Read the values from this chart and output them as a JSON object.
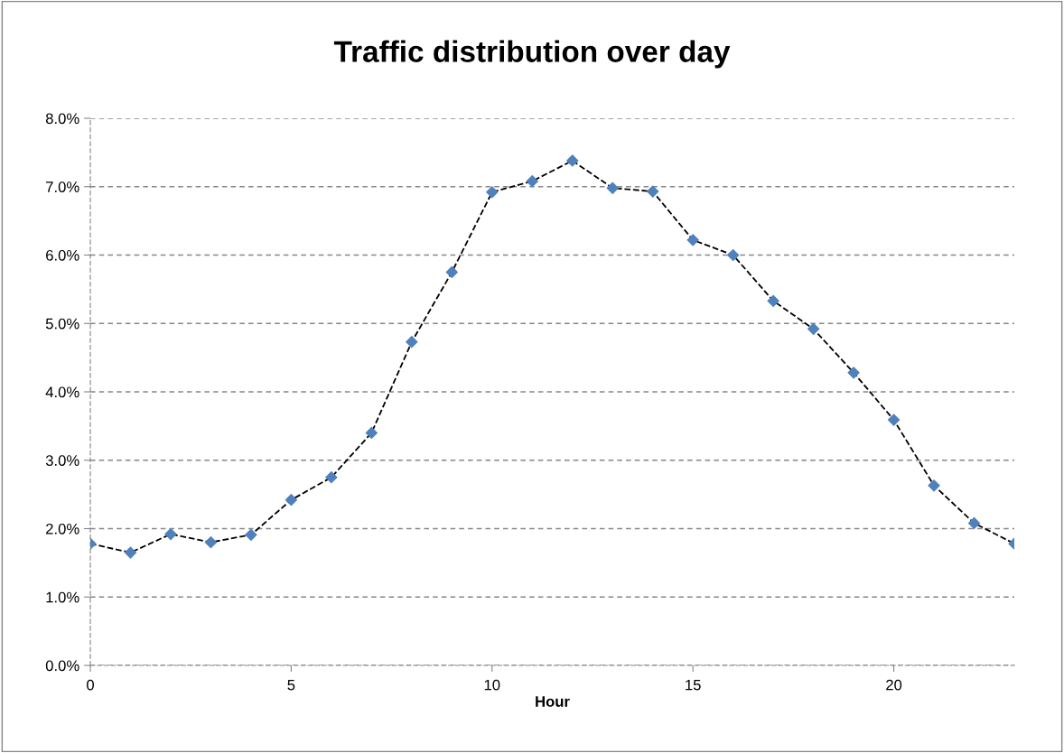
{
  "chart_data": {
    "type": "line",
    "title": "Traffic distribution over day",
    "xlabel": "Hour",
    "x": [
      0,
      1,
      2,
      3,
      4,
      5,
      6,
      7,
      8,
      9,
      10,
      11,
      12,
      13,
      14,
      15,
      16,
      17,
      18,
      19,
      20,
      21,
      22,
      23
    ],
    "series": [
      {
        "color": "#4f81bd",
        "values": [
          1.78,
          1.65,
          1.92,
          1.8,
          1.91,
          2.42,
          2.75,
          3.4,
          4.73,
          5.75,
          6.92,
          7.08,
          7.38,
          6.98,
          6.93,
          6.22,
          6.0,
          5.33,
          4.92,
          4.28,
          3.59,
          2.63,
          2.08,
          1.78
        ]
      }
    ],
    "xlim": [
      0,
      23
    ],
    "xticks": [
      0,
      5,
      10,
      15,
      20
    ],
    "ylim": [
      0,
      8
    ],
    "yticks": [
      {
        "value": 0,
        "label": "0.0%"
      },
      {
        "value": 1,
        "label": "1.0%"
      },
      {
        "value": 2,
        "label": "2.0%"
      },
      {
        "value": 3,
        "label": "3.0%"
      },
      {
        "value": 4,
        "label": "4.0%"
      },
      {
        "value": 5,
        "label": "5.0%"
      },
      {
        "value": 6,
        "label": "6.0%"
      },
      {
        "value": 7,
        "label": "7.0%"
      },
      {
        "value": 8,
        "label": "8.0%"
      }
    ],
    "grid": "y",
    "marker": "diamond",
    "line_style": "dashed"
  }
}
